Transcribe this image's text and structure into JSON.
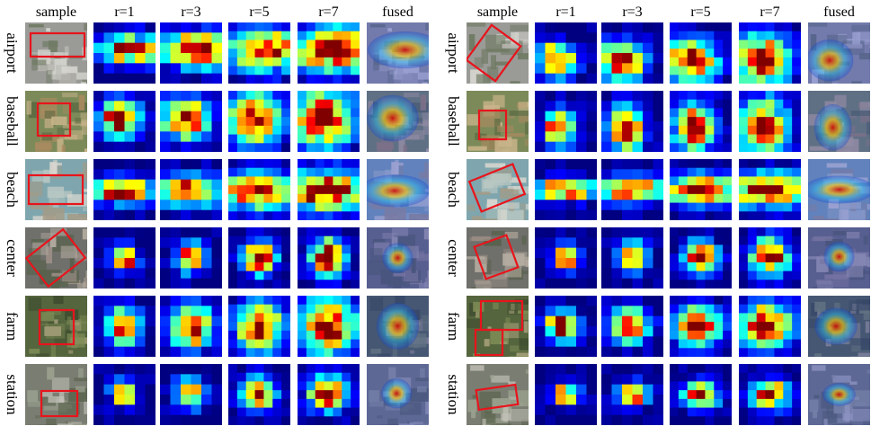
{
  "figure": {
    "column_headers": [
      "sample",
      "r=1",
      "r=3",
      "r=5",
      "r=7",
      "fused"
    ],
    "groups": [
      {
        "rows": [
          {
            "label": "airport"
          },
          {
            "label": "baseball"
          },
          {
            "label": "beach"
          },
          {
            "label": "center"
          },
          {
            "label": "farm"
          },
          {
            "label": "station"
          }
        ]
      },
      {
        "rows": [
          {
            "label": "airport"
          },
          {
            "label": "baseball"
          },
          {
            "label": "beach"
          },
          {
            "label": "center"
          },
          {
            "label": "farm"
          },
          {
            "label": "station"
          }
        ]
      }
    ],
    "colors": {
      "box": "#e8141c",
      "heat_low": "#00008f",
      "heat_high": "#8b0000"
    }
  }
}
